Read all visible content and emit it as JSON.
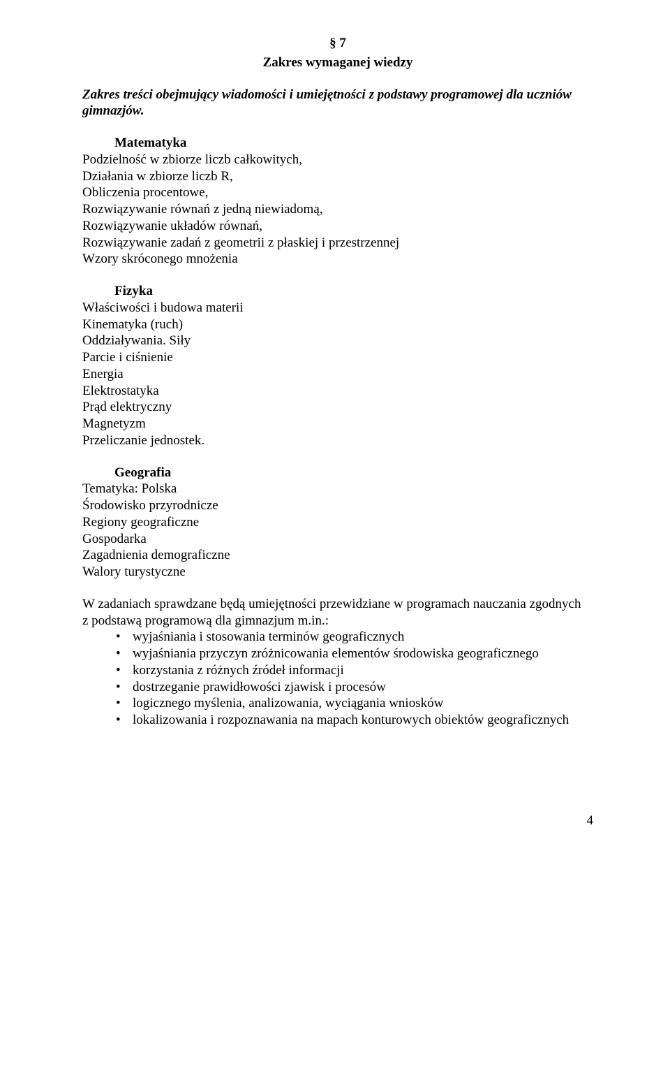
{
  "section": {
    "number": "§ 7",
    "title": "Zakres wymaganej wiedzy"
  },
  "intro": "Zakres treści obejmujący wiadomości i umiejętności z podstawy programowej dla uczniów gimnazjów.",
  "matematyka": {
    "heading": "Matematyka",
    "lines": [
      "Podzielność w zbiorze liczb całkowitych,",
      "Działania w zbiorze liczb R,",
      "Obliczenia procentowe,",
      "Rozwiązywanie równań z jedną niewiadomą,",
      "Rozwiązywanie układów równań,",
      "Rozwiązywanie zadań z geometrii z płaskiej i przestrzennej",
      "Wzory skróconego mnożenia"
    ]
  },
  "fizyka": {
    "heading": "Fizyka",
    "lines": [
      "Właściwości i budowa materii",
      "Kinematyka (ruch)",
      "Oddziaływania. Siły",
      "Parcie i ciśnienie",
      "Energia",
      "Elektrostatyka",
      "Prąd elektryczny",
      "Magnetyzm",
      "Przeliczanie jednostek."
    ]
  },
  "geografia": {
    "heading": "Geografia",
    "lines": [
      "Tematyka: Polska",
      "Środowisko przyrodnicze",
      "Regiony geograficzne",
      "Gospodarka",
      "Zagadnienia demograficzne",
      "Walory turystyczne"
    ]
  },
  "skills": {
    "intro1": "W zadaniach sprawdzane będą umiejętności przewidziane w programach nauczania zgodnych",
    "intro2": "z podstawą programową dla gimnazjum m.in.:",
    "bullets": [
      "wyjaśniania i stosowania terminów geograficznych",
      "wyjaśniania przyczyn zróżnicowania elementów środowiska geograficznego",
      "korzystania z różnych źródeł informacji",
      "dostrzeganie prawidłowości zjawisk i procesów",
      "logicznego myślenia, analizowania, wyciągania wniosków",
      "lokalizowania i rozpoznawania na mapach konturowych obiektów geograficznych"
    ]
  },
  "page_number": "4"
}
